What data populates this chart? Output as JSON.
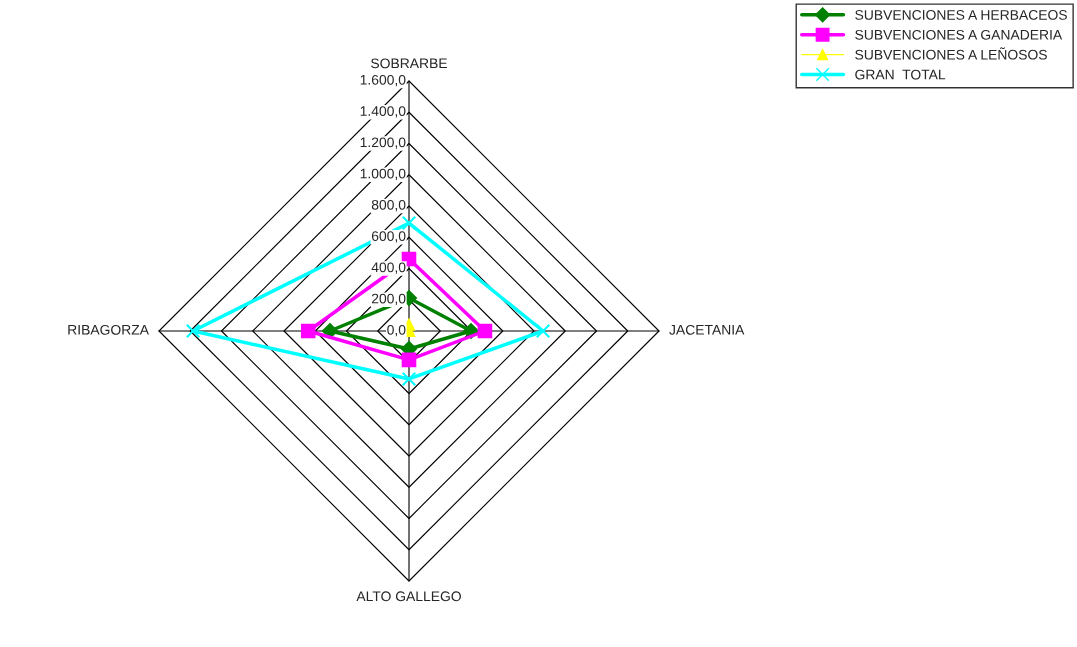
{
  "chart_data": {
    "type": "radar",
    "categories": [
      "SOBRARBE",
      "JACETANIA",
      "ALTO GALLEGO",
      "RIBAGORZA"
    ],
    "ylim": [
      0,
      1600
    ],
    "yticks": [
      {
        "value": 0,
        "label": "0,0"
      },
      {
        "value": 200,
        "label": "200,0"
      },
      {
        "value": 400,
        "label": "400,0"
      },
      {
        "value": 600,
        "label": "600,0"
      },
      {
        "value": 800,
        "label": "800,0"
      },
      {
        "value": 1000,
        "label": "1.000,0"
      },
      {
        "value": 1200,
        "label": "1.200,0"
      },
      {
        "value": 1400,
        "label": "1.400,0"
      },
      {
        "value": 1600,
        "label": "1.600,0"
      }
    ],
    "series": [
      {
        "name": "SUBVENCIONES A HERBACEOS",
        "color": "#008000",
        "marker": "diamond",
        "values": [
          211,
          397,
          115,
          506
        ]
      },
      {
        "name": "SUBVENCIONES A GANADERIA",
        "color": "#ff00ff",
        "marker": "square",
        "values": [
          461,
          486,
          185,
          645
        ]
      },
      {
        "name": "SUBVENCIONES A LEÑOSOS",
        "color": "#ffff00",
        "marker": "triangle",
        "values": [
          40,
          0,
          0,
          77
        ]
      },
      {
        "name": "GRAN  TOTAL",
        "color": "#00ffff",
        "marker": "cross",
        "values": [
          691,
          858,
          307,
          1382
        ]
      }
    ],
    "legend": "top right",
    "grid": true,
    "line_style": "solid"
  }
}
